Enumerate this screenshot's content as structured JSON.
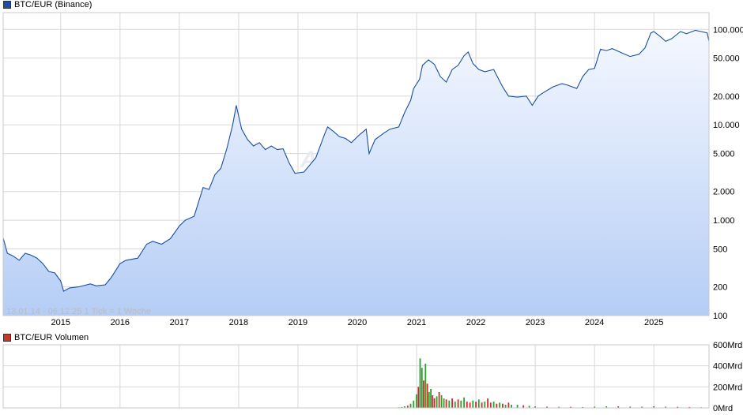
{
  "chart_data": [
    {
      "type": "area",
      "legend": "BTC/EUR (Binance)",
      "info": "13.01.14 - 06.12.25   1 Tick = 1 Woche",
      "watermark": "ARIVA.DE",
      "y_scale": "log",
      "ylim": [
        100,
        150000
      ],
      "y_ticks": [
        {
          "value": 100,
          "label": "100"
        },
        {
          "value": 200,
          "label": "200"
        },
        {
          "value": 500,
          "label": "500"
        },
        {
          "value": 1000,
          "label": "1.000"
        },
        {
          "value": 2000,
          "label": "2.000"
        },
        {
          "value": 5000,
          "label": "5.000"
        },
        {
          "value": 10000,
          "label": "10.000"
        },
        {
          "value": 20000,
          "label": "20.000"
        },
        {
          "value": 50000,
          "label": "50.000"
        },
        {
          "value": 100000,
          "label": "100.000"
        }
      ],
      "x_ticks": [
        "2015",
        "2016",
        "2017",
        "2018",
        "2019",
        "2020",
        "2021",
        "2022",
        "2023",
        "2024",
        "2025"
      ],
      "xlim": [
        2014.03,
        2025.93
      ],
      "colors": {
        "line": "#1a4fa0",
        "fill_top": "#f4f8ff",
        "fill_bottom": "#b5cdf5",
        "grid": "#d8d8d8",
        "swatch": "#1f4e9c"
      },
      "x": [
        2014.03,
        2014.1,
        2014.2,
        2014.3,
        2014.4,
        2014.5,
        2014.6,
        2014.7,
        2014.8,
        2014.9,
        2015.0,
        2015.05,
        2015.15,
        2015.3,
        2015.5,
        2015.6,
        2015.75,
        2015.85,
        2016.0,
        2016.1,
        2016.3,
        2016.45,
        2016.55,
        2016.7,
        2016.85,
        2017.0,
        2017.1,
        2017.25,
        2017.4,
        2017.5,
        2017.6,
        2017.7,
        2017.8,
        2017.9,
        2017.96,
        2018.05,
        2018.15,
        2018.25,
        2018.35,
        2018.45,
        2018.55,
        2018.65,
        2018.75,
        2018.85,
        2018.95,
        2019.1,
        2019.3,
        2019.45,
        2019.5,
        2019.6,
        2019.7,
        2019.8,
        2019.9,
        2020.05,
        2020.15,
        2020.2,
        2020.3,
        2020.45,
        2020.55,
        2020.7,
        2020.8,
        2020.9,
        2020.95,
        2021.05,
        2021.1,
        2021.2,
        2021.3,
        2021.4,
        2021.5,
        2021.6,
        2021.7,
        2021.8,
        2021.87,
        2021.95,
        2022.05,
        2022.15,
        2022.3,
        2022.45,
        2022.55,
        2022.7,
        2022.85,
        2022.95,
        2023.05,
        2023.15,
        2023.3,
        2023.45,
        2023.55,
        2023.7,
        2023.8,
        2023.9,
        2024.0,
        2024.1,
        2024.2,
        2024.3,
        2024.45,
        2024.6,
        2024.75,
        2024.85,
        2024.95,
        2025.0,
        2025.1,
        2025.2,
        2025.3,
        2025.45,
        2025.55,
        2025.7,
        2025.8,
        2025.9,
        2025.93
      ],
      "y": [
        650,
        450,
        420,
        380,
        450,
        430,
        400,
        350,
        290,
        280,
        230,
        180,
        195,
        200,
        215,
        205,
        210,
        250,
        350,
        380,
        400,
        560,
        600,
        560,
        640,
        870,
        1000,
        1100,
        2200,
        2100,
        3000,
        3500,
        5600,
        10000,
        16000,
        9000,
        7000,
        6000,
        6500,
        5500,
        6000,
        5500,
        5600,
        4000,
        3100,
        3200,
        4500,
        8000,
        9500,
        8500,
        7500,
        7200,
        6500,
        8000,
        9000,
        5000,
        7000,
        8200,
        9000,
        9500,
        13500,
        18000,
        24000,
        30000,
        42000,
        48000,
        43000,
        32000,
        28000,
        38000,
        42000,
        53000,
        58000,
        44000,
        38000,
        36000,
        38000,
        25000,
        20000,
        19500,
        20000,
        16000,
        20000,
        22000,
        25000,
        27000,
        26000,
        24000,
        32000,
        38000,
        39000,
        62000,
        60000,
        63000,
        57000,
        52000,
        55000,
        64000,
        92000,
        95000,
        85000,
        75000,
        80000,
        95000,
        90000,
        98000,
        95000,
        92000,
        75000
      ]
    },
    {
      "type": "bar",
      "legend": "BTC/EUR Volumen",
      "ylim": [
        0,
        600
      ],
      "y_ticks": [
        {
          "value": 0,
          "label": "0Mrd"
        },
        {
          "value": 200,
          "label": "200Mrd"
        },
        {
          "value": 400,
          "label": "400Mrd"
        },
        {
          "value": 600,
          "label": "600Mrd"
        }
      ],
      "colors": {
        "up": "#2ca02c",
        "down": "#d62728",
        "swatch": "#c0392b"
      },
      "x": [
        2019.9,
        2020.0,
        2020.1,
        2020.2,
        2020.3,
        2020.4,
        2020.5,
        2020.6,
        2020.7,
        2020.75,
        2020.8,
        2020.85,
        2020.9,
        2020.95,
        2021.0,
        2021.03,
        2021.06,
        2021.09,
        2021.12,
        2021.15,
        2021.18,
        2021.21,
        2021.24,
        2021.27,
        2021.3,
        2021.34,
        2021.38,
        2021.42,
        2021.46,
        2021.5,
        2021.55,
        2021.6,
        2021.65,
        2021.7,
        2021.75,
        2021.8,
        2021.85,
        2021.9,
        2021.95,
        2022.0,
        2022.05,
        2022.1,
        2022.15,
        2022.2,
        2022.25,
        2022.3,
        2022.35,
        2022.4,
        2022.45,
        2022.5,
        2022.55,
        2022.6,
        2022.7,
        2022.8,
        2022.9,
        2023.0,
        2023.2,
        2023.4,
        2023.6,
        2023.8,
        2024.0,
        2024.2,
        2024.4,
        2024.6,
        2024.8,
        2025.0,
        2025.2,
        2025.4,
        2025.6,
        2025.8
      ],
      "values": [
        2,
        3,
        3,
        4,
        3,
        3,
        4,
        4,
        6,
        8,
        15,
        22,
        40,
        70,
        130,
        200,
        470,
        380,
        260,
        420,
        230,
        150,
        180,
        120,
        90,
        110,
        150,
        120,
        90,
        80,
        70,
        90,
        60,
        80,
        70,
        100,
        60,
        50,
        70,
        60,
        80,
        50,
        60,
        90,
        50,
        60,
        40,
        50,
        40,
        30,
        50,
        30,
        30,
        25,
        20,
        15,
        12,
        10,
        10,
        8,
        12,
        15,
        15,
        12,
        12,
        15,
        12,
        10,
        8,
        6
      ],
      "direction": [
        "u",
        "d",
        "u",
        "u",
        "d",
        "u",
        "u",
        "d",
        "u",
        "u",
        "u",
        "d",
        "u",
        "u",
        "u",
        "d",
        "u",
        "u",
        "d",
        "u",
        "d",
        "u",
        "u",
        "d",
        "d",
        "u",
        "d",
        "u",
        "u",
        "d",
        "u",
        "d",
        "u",
        "d",
        "u",
        "u",
        "d",
        "d",
        "u",
        "d",
        "u",
        "d",
        "u",
        "d",
        "d",
        "u",
        "d",
        "u",
        "d",
        "u",
        "d",
        "u",
        "u",
        "d",
        "u",
        "u",
        "d",
        "u",
        "d",
        "u",
        "u",
        "u",
        "d",
        "u",
        "u",
        "d",
        "u",
        "d",
        "d",
        "u"
      ]
    }
  ]
}
